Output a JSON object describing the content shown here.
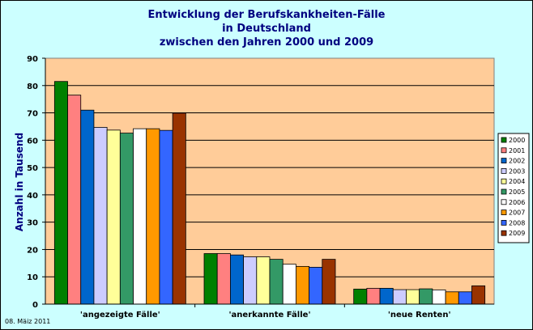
{
  "chart_data": {
    "type": "bar",
    "title_lines": [
      "Entwicklung der Berufskankheiten-Fälle",
      "in Deutschland",
      "zwischen den Jahren 2000 und 2009"
    ],
    "xlabel": "",
    "ylabel": "Anzahl in Tausend",
    "ylim": [
      0,
      90
    ],
    "yticks": [
      0,
      10,
      20,
      30,
      40,
      50,
      60,
      70,
      80,
      90
    ],
    "grid": true,
    "legend_position": "right",
    "categories": [
      "'angezeigte Fälle'",
      "'anerkannte Fälle'",
      "'neue Renten'"
    ],
    "series": [
      {
        "name": "2000",
        "color": "#008000",
        "values": [
          81.5,
          18.5,
          5.5
        ]
      },
      {
        "name": "2001",
        "color": "#ff8080",
        "values": [
          76.5,
          18.5,
          5.8
        ]
      },
      {
        "name": "2002",
        "color": "#0066cc",
        "values": [
          71.0,
          18.0,
          5.8
        ]
      },
      {
        "name": "2003",
        "color": "#ccccff",
        "values": [
          64.7,
          17.3,
          5.3
        ]
      },
      {
        "name": "2004",
        "color": "#ffff99",
        "values": [
          63.7,
          17.3,
          5.3
        ]
      },
      {
        "name": "2005",
        "color": "#339966",
        "values": [
          62.6,
          16.4,
          5.6
        ]
      },
      {
        "name": "2006",
        "color": "#ffffff",
        "values": [
          64.2,
          14.6,
          5.2
        ]
      },
      {
        "name": "2007",
        "color": "#ff9900",
        "values": [
          64.2,
          13.8,
          4.5
        ]
      },
      {
        "name": "2008",
        "color": "#3366ff",
        "values": [
          63.6,
          13.5,
          4.5
        ]
      },
      {
        "name": "2009",
        "color": "#993300",
        "values": [
          69.9,
          16.4,
          6.7
        ]
      }
    ],
    "plot_background": "#ffcc99",
    "page_background": "#ccffff"
  },
  "footer": {
    "date": "08. Mäiz 2011"
  }
}
